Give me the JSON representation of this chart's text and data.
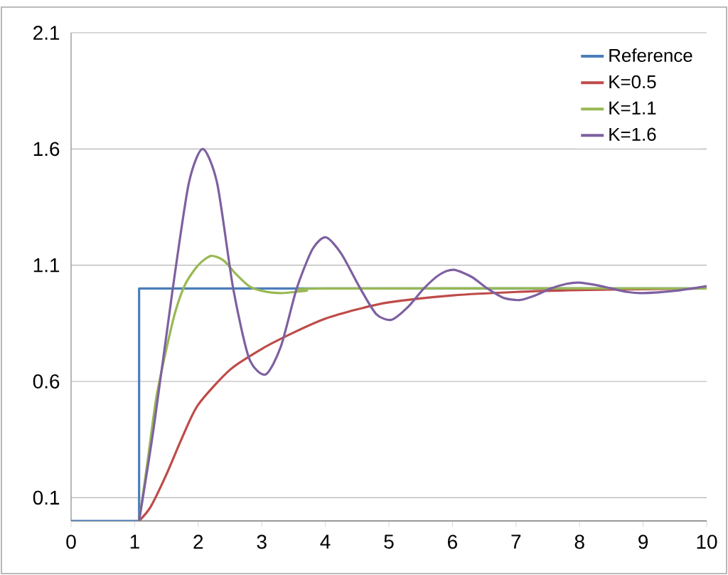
{
  "chart_data": {
    "type": "line",
    "xlim": [
      0,
      10
    ],
    "ylim": [
      0,
      2.1
    ],
    "xticks": [
      0,
      1,
      2,
      3,
      4,
      5,
      6,
      7,
      8,
      9,
      10
    ],
    "yticks": [
      0.1,
      0.6,
      1.1,
      1.6,
      2.1
    ],
    "grid": "y",
    "legend": "top right",
    "line_style": "solid",
    "series": [
      {
        "name": "Reference",
        "color": "#4a7ebb",
        "type": "step",
        "x": [
          0,
          1.07,
          1.07,
          10
        ],
        "values": [
          0,
          0,
          1.0,
          1.0
        ]
      },
      {
        "name": "K=0.5",
        "color": "#be4b48",
        "x": [
          1.07,
          1.25,
          1.5,
          1.75,
          2,
          2.5,
          3,
          3.5,
          4,
          4.5,
          5,
          6,
          7,
          8,
          9,
          10
        ],
        "values": [
          0,
          0.06,
          0.2,
          0.36,
          0.5,
          0.65,
          0.74,
          0.81,
          0.87,
          0.91,
          0.94,
          0.97,
          0.985,
          0.993,
          0.997,
          1.0
        ]
      },
      {
        "name": "K=1.1",
        "color": "#98b954",
        "x": [
          1.07,
          1.2,
          1.34,
          1.5,
          1.64,
          1.8,
          2,
          2.2,
          2.4,
          2.6,
          2.8,
          3,
          3.3,
          3.7,
          4,
          10
        ],
        "values": [
          0,
          0.25,
          0.53,
          0.74,
          0.9,
          1.02,
          1.1,
          1.14,
          1.12,
          1.06,
          1.01,
          0.99,
          0.98,
          0.99,
          1.0,
          1.0
        ]
      },
      {
        "name": "K=1.6",
        "color": "#7d60a0",
        "x": [
          1.07,
          1.3,
          1.6,
          1.85,
          2.07,
          2.3,
          2.55,
          2.8,
          3.06,
          3.3,
          3.55,
          3.8,
          4.01,
          4.25,
          4.55,
          4.8,
          5.04,
          5.3,
          5.55,
          5.8,
          6.02,
          6.3,
          6.55,
          6.8,
          7.05,
          7.3,
          7.55,
          7.8,
          7.99,
          8.25,
          8.5,
          8.75,
          8.99,
          9.5,
          10
        ],
        "values": [
          0,
          0.4,
          1.0,
          1.45,
          1.6,
          1.45,
          1.0,
          0.7,
          0.63,
          0.75,
          1.0,
          1.17,
          1.22,
          1.15,
          1.0,
          0.89,
          0.865,
          0.92,
          1.0,
          1.06,
          1.08,
          1.05,
          1.0,
          0.96,
          0.95,
          0.97,
          1.0,
          1.02,
          1.025,
          1.015,
          1.0,
          0.985,
          0.98,
          0.99,
          1.01
        ]
      }
    ]
  }
}
